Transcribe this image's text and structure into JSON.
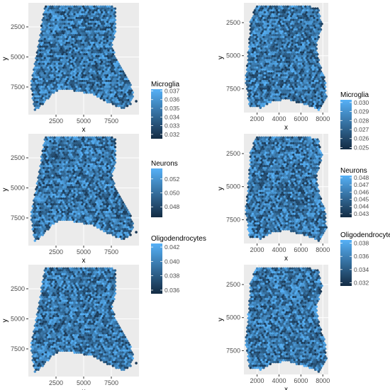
{
  "chart_data": [
    {
      "type": "heatmap",
      "column": "left",
      "row": 1,
      "xlabel": "x",
      "ylabel": "y",
      "xlim": [
        0,
        10000
      ],
      "ylim": [
        9800,
        500
      ],
      "y_reversed": true,
      "x_ticks": [
        2500,
        5000,
        7500
      ],
      "y_ticks": [
        2500,
        5000,
        7500
      ],
      "x_tick_labels": [
        "2500",
        "5000",
        "7500"
      ],
      "y_tick_labels": [
        "2500",
        "5000",
        "7500"
      ],
      "legend": {
        "title": "Microglia",
        "min": 0.0315,
        "max": 0.0372,
        "ticks": [
          "0.037",
          "0.036",
          "0.035",
          "0.034",
          "0.033",
          "0.032"
        ],
        "tick_values": [
          0.037,
          0.036,
          0.035,
          0.034,
          0.033,
          0.032
        ]
      },
      "grid": true
    },
    {
      "type": "heatmap",
      "column": "left",
      "row": 2,
      "xlabel": "x",
      "ylabel": "y",
      "xlim": [
        0,
        10000
      ],
      "ylim": [
        9800,
        500
      ],
      "y_reversed": true,
      "x_ticks": [
        2500,
        5000,
        7500
      ],
      "y_ticks": [
        2500,
        5000,
        7500
      ],
      "x_tick_labels": [
        "2500",
        "5000",
        "7500"
      ],
      "y_tick_labels": [
        "2500",
        "5000",
        "7500"
      ],
      "legend": {
        "title": "Neurons",
        "min": 0.0465,
        "max": 0.0535,
        "ticks": [
          "0.052",
          "0.050",
          "0.048"
        ],
        "tick_values": [
          0.052,
          0.05,
          0.048
        ]
      },
      "grid": true
    },
    {
      "type": "heatmap",
      "column": "left",
      "row": 3,
      "xlabel": "x",
      "ylabel": "y",
      "xlim": [
        0,
        10000
      ],
      "ylim": [
        9800,
        500
      ],
      "y_reversed": true,
      "x_ticks": [
        2500,
        5000,
        7500
      ],
      "y_ticks": [
        2500,
        5000,
        7500
      ],
      "x_tick_labels": [
        "2500",
        "5000",
        "7500"
      ],
      "y_tick_labels": [
        "2500",
        "5000",
        "7500"
      ],
      "legend": {
        "title": "Oligodendrocytes",
        "min": 0.0355,
        "max": 0.0425,
        "ticks": [
          "0.042",
          "0.040",
          "0.038",
          "0.036"
        ],
        "tick_values": [
          0.042,
          0.04,
          0.038,
          0.036
        ]
      },
      "grid": true
    },
    {
      "type": "heatmap",
      "column": "right",
      "row": 1,
      "xlabel": "x",
      "ylabel": "y",
      "xlim": [
        800,
        8500
      ],
      "ylim": [
        9300,
        1000
      ],
      "y_reversed": true,
      "x_ticks": [
        2000,
        4000,
        6000,
        8000
      ],
      "y_ticks": [
        2500,
        5000,
        7500
      ],
      "x_tick_labels": [
        "2000",
        "4000",
        "6000",
        "8000"
      ],
      "y_tick_labels": [
        "2500",
        "5000",
        "7500"
      ],
      "legend": {
        "title": "Microglia",
        "min": 0.0248,
        "max": 0.0303,
        "ticks": [
          "0.030",
          "0.029",
          "0.028",
          "0.027",
          "0.026",
          "0.025"
        ],
        "tick_values": [
          0.03,
          0.029,
          0.028,
          0.027,
          0.026,
          0.025
        ]
      },
      "grid": true
    },
    {
      "type": "heatmap",
      "column": "right",
      "row": 2,
      "xlabel": "x",
      "ylabel": "y",
      "xlim": [
        800,
        8500
      ],
      "ylim": [
        9300,
        1000
      ],
      "y_reversed": true,
      "x_ticks": [
        2000,
        4000,
        6000,
        8000
      ],
      "y_ticks": [
        2500,
        5000,
        7500
      ],
      "x_tick_labels": [
        "2000",
        "4000",
        "6000",
        "8000"
      ],
      "y_tick_labels": [
        "2500",
        "5000",
        "7500"
      ],
      "legend": {
        "title": "Neurons",
        "min": 0.0425,
        "max": 0.0483,
        "ticks": [
          "0.048",
          "0.047",
          "0.046",
          "0.045",
          "0.044",
          "0.043"
        ],
        "tick_values": [
          0.048,
          0.047,
          0.046,
          0.045,
          0.044,
          0.043
        ]
      },
      "grid": true
    },
    {
      "type": "heatmap",
      "column": "right",
      "row": 3,
      "xlabel": "x",
      "ylabel": "y",
      "xlim": [
        800,
        8500
      ],
      "ylim": [
        9300,
        1000
      ],
      "y_reversed": true,
      "x_ticks": [
        2000,
        4000,
        6000,
        8000
      ],
      "y_ticks": [
        2500,
        5000,
        7500
      ],
      "x_tick_labels": [
        "2000",
        "4000",
        "6000",
        "8000"
      ],
      "y_tick_labels": [
        "2500",
        "5000",
        "7500"
      ],
      "legend": {
        "title": "Oligodendrocytes",
        "min": 0.0315,
        "max": 0.0385,
        "ticks": [
          "0.038",
          "0.036",
          "0.034",
          "0.032"
        ],
        "tick_values": [
          0.038,
          0.036,
          0.034,
          0.032
        ]
      },
      "grid": true
    }
  ],
  "colors": {
    "panel_background": "#ebebeb",
    "grid_major": "#ffffff",
    "gradient_low": "#132b43",
    "gradient_high": "#56b1f7",
    "axis_text": "#4d4d4d",
    "title_text": "#000000"
  }
}
